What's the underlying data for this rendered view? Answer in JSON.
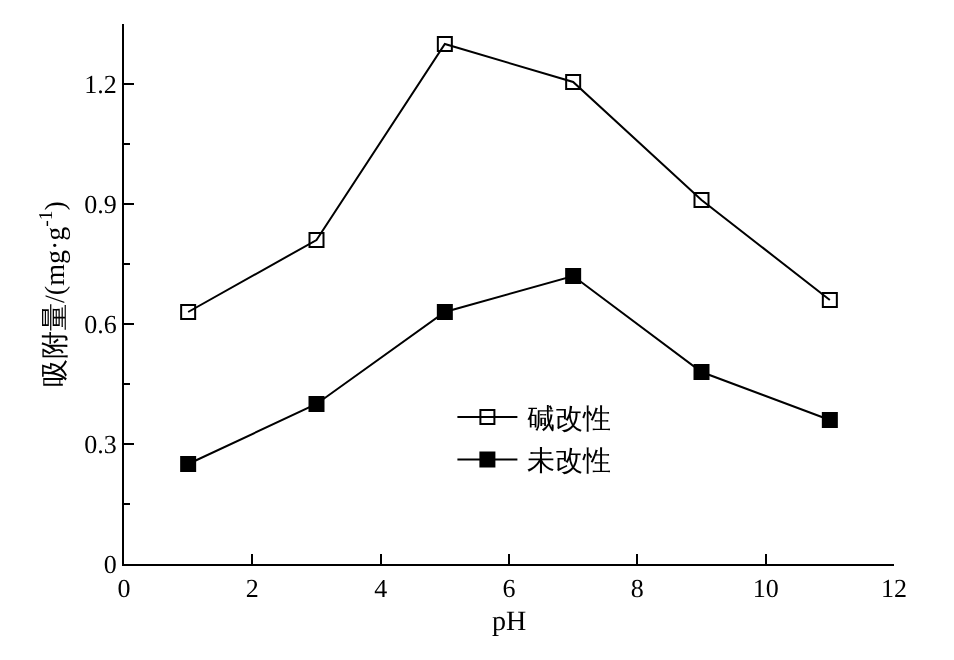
{
  "chart_data": {
    "type": "line",
    "xlabel": "pH",
    "ylabel": "吸附量/(mg·g$^{-1}$)",
    "x": [
      1,
      3,
      5,
      7,
      9,
      11
    ],
    "series": [
      {
        "name": "碱改性",
        "color": "#000000",
        "marker": "square-open",
        "values": [
          0.63,
          0.81,
          1.3,
          1.205,
          0.91,
          0.66
        ]
      },
      {
        "name": "未改性",
        "color": "#000000",
        "marker": "square",
        "values": [
          0.25,
          0.4,
          0.63,
          0.72,
          0.48,
          0.36
        ]
      }
    ],
    "xlim": [
      0,
      12
    ],
    "xticks": [
      0,
      2,
      4,
      6,
      8,
      10,
      12
    ],
    "ylim": [
      0,
      1.35
    ],
    "yticks": [
      0,
      0.3,
      0.6,
      0.9,
      1.2
    ],
    "legend": "bottom",
    "line_style": "solid"
  }
}
